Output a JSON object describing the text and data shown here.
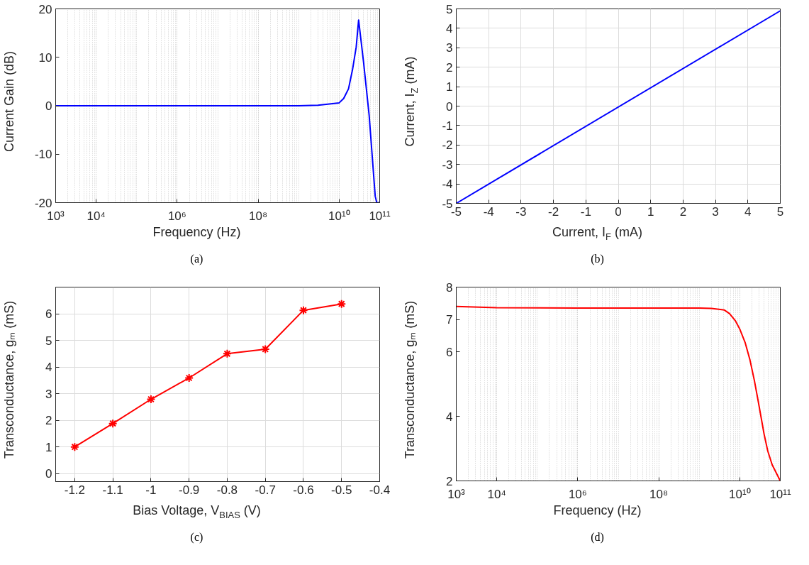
{
  "chart_data": [
    {
      "type": "line",
      "xlabel": "Frequency (Hz)",
      "ylabel": "Current Gain (dB)",
      "annotations": [
        "(a)"
      ],
      "log": "x",
      "grid": "x",
      "xlim": [
        1000,
        100000000000
      ],
      "ylim": [
        -20,
        20
      ],
      "xticks": [
        {
          "value": 1000,
          "label": "10³"
        },
        {
          "value": 10000,
          "label": "10⁴"
        },
        {
          "value": 1000000,
          "label": "10⁶"
        },
        {
          "value": 100000000,
          "label": "10⁸"
        },
        {
          "value": 10000000000,
          "label": "10¹⁰"
        },
        {
          "value": 100000000000,
          "label": "10¹¹"
        }
      ],
      "yticks": [
        -20,
        -10,
        0,
        10,
        20
      ],
      "x": [
        1000,
        1000000,
        1000000000,
        3000000000,
        10000000000,
        12900000000,
        17000000000,
        21400000000,
        26300000000,
        30200000000,
        40000000000,
        55000000000,
        77600000000,
        85000000000,
        100000000000
      ],
      "series": [
        {
          "color": "#0000ff",
          "values": [
            0,
            0,
            0,
            0.1,
            0.6,
            1.5,
            3.5,
            7.5,
            12.1,
            17.7,
            9,
            -2,
            -18.7,
            -20,
            -20
          ]
        }
      ]
    },
    {
      "type": "line",
      "xlabel": "Current, I$_{F}$ (mA)",
      "ylabel": "Current, I$_{Z}$ (mA)",
      "annotations": [
        "(b)"
      ],
      "grid": true,
      "xlim": [
        -5,
        5
      ],
      "ylim": [
        -5,
        5
      ],
      "xticks": [
        -5,
        -4,
        -3,
        -2,
        -1,
        0,
        1,
        2,
        3,
        4,
        5
      ],
      "yticks": [
        -5,
        -4,
        -3,
        -2,
        -1,
        0,
        1,
        2,
        3,
        4,
        5
      ],
      "x": [
        -5,
        5
      ],
      "series": [
        {
          "color": "#0000ff",
          "values": [
            -5,
            4.9
          ]
        }
      ]
    },
    {
      "type": "line",
      "xlabel": "Bias Voltage, V$_{BIAS}$ (V)",
      "ylabel": "Transconductance, gₘ (mS)",
      "annotations": [
        "(c)"
      ],
      "grid": true,
      "marker": "cross",
      "xlim": [
        -1.25,
        -0.4
      ],
      "ylim": [
        -0.3,
        7
      ],
      "xticks": [
        -1.2,
        -1.1,
        -1,
        -0.9,
        -0.8,
        -0.7,
        -0.6,
        -0.5,
        -0.4
      ],
      "yticks": [
        0,
        1,
        2,
        3,
        4,
        5,
        6
      ],
      "x": [
        -1.2,
        -1.1,
        -1,
        -0.9,
        -0.8,
        -0.7,
        -0.6,
        -0.5
      ],
      "series": [
        {
          "color": "#ff0000",
          "values": [
            1.0,
            1.88,
            2.79,
            3.59,
            4.5,
            4.67,
            6.13,
            6.37
          ]
        }
      ]
    },
    {
      "type": "line",
      "xlabel": "Frequency (Hz)",
      "ylabel": "Transconductance, gₘ (mS)",
      "annotations": [
        "(d)"
      ],
      "log": "x",
      "grid": "x",
      "xlim": [
        1000,
        100000000000
      ],
      "ylim": [
        2,
        8
      ],
      "xticks": [
        {
          "value": 1000,
          "label": "10³"
        },
        {
          "value": 10000,
          "label": "10⁴"
        },
        {
          "value": 1000000,
          "label": "10⁶"
        },
        {
          "value": 100000000,
          "label": "10⁸"
        },
        {
          "value": 10000000000,
          "label": "10¹⁰"
        },
        {
          "value": 100000000000,
          "label": "10¹¹"
        }
      ],
      "yticks": [
        2,
        4,
        6,
        7,
        8
      ],
      "x": [
        1000,
        10000,
        1000000,
        1000000000,
        2000000000,
        4170000000,
        5600000000,
        7760000000,
        10000000000,
        13500000000,
        17800000000,
        22900000000,
        28200000000,
        33900000000,
        39800000000,
        49000000000,
        63000000000,
        100000000000
      ],
      "series": [
        {
          "color": "#ff0000",
          "values": [
            7.4,
            7.36,
            7.35,
            7.35,
            7.34,
            7.29,
            7.18,
            6.96,
            6.7,
            6.29,
            5.75,
            5.11,
            4.5,
            3.94,
            3.45,
            2.93,
            2.5,
            2.0
          ]
        }
      ]
    }
  ]
}
